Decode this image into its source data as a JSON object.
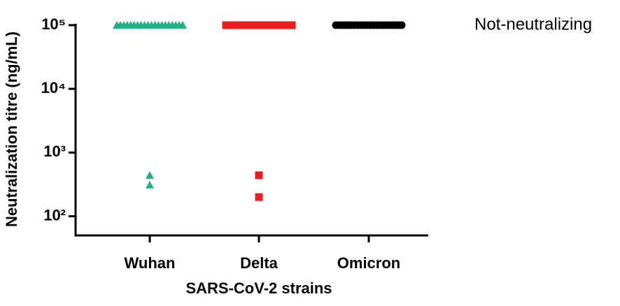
{
  "chart_data": {
    "type": "strip",
    "ylabel": "Neutralization titre (ng/mL)",
    "xlabel": "SARS-CoV-2 strains",
    "annotation": "Not-neutralizing",
    "log_y": true,
    "categories": [
      "Wuhan",
      "Delta",
      "Omicron"
    ],
    "colors": [
      "#1fb383",
      "#ee1c1c",
      "#000000"
    ],
    "markers": [
      "triangle",
      "square",
      "circle"
    ],
    "values": [
      [
        100000,
        100000,
        100000,
        100000,
        100000,
        100000,
        100000,
        100000,
        100000,
        100000,
        100000,
        100000,
        100000,
        100000,
        100000,
        100000,
        100000,
        100000,
        100000,
        100000,
        440,
        310
      ],
      [
        100000,
        100000,
        100000,
        100000,
        100000,
        100000,
        100000,
        100000,
        100000,
        100000,
        100000,
        100000,
        100000,
        100000,
        100000,
        100000,
        100000,
        100000,
        100000,
        100000,
        440,
        200
      ],
      [
        100000,
        100000,
        100000,
        100000,
        100000,
        100000,
        100000,
        100000,
        100000,
        100000,
        100000,
        100000,
        100000,
        100000,
        100000,
        100000,
        100000,
        100000,
        100000,
        100000,
        100000,
        100000
      ]
    ],
    "ylim": [
      50,
      100000
    ],
    "yticks": [
      {
        "value": 100,
        "label": "10²"
      },
      {
        "value": 1000,
        "label": "10³"
      },
      {
        "value": 10000,
        "label": "10⁴"
      },
      {
        "value": 100000,
        "label": "10⁵"
      }
    ]
  }
}
